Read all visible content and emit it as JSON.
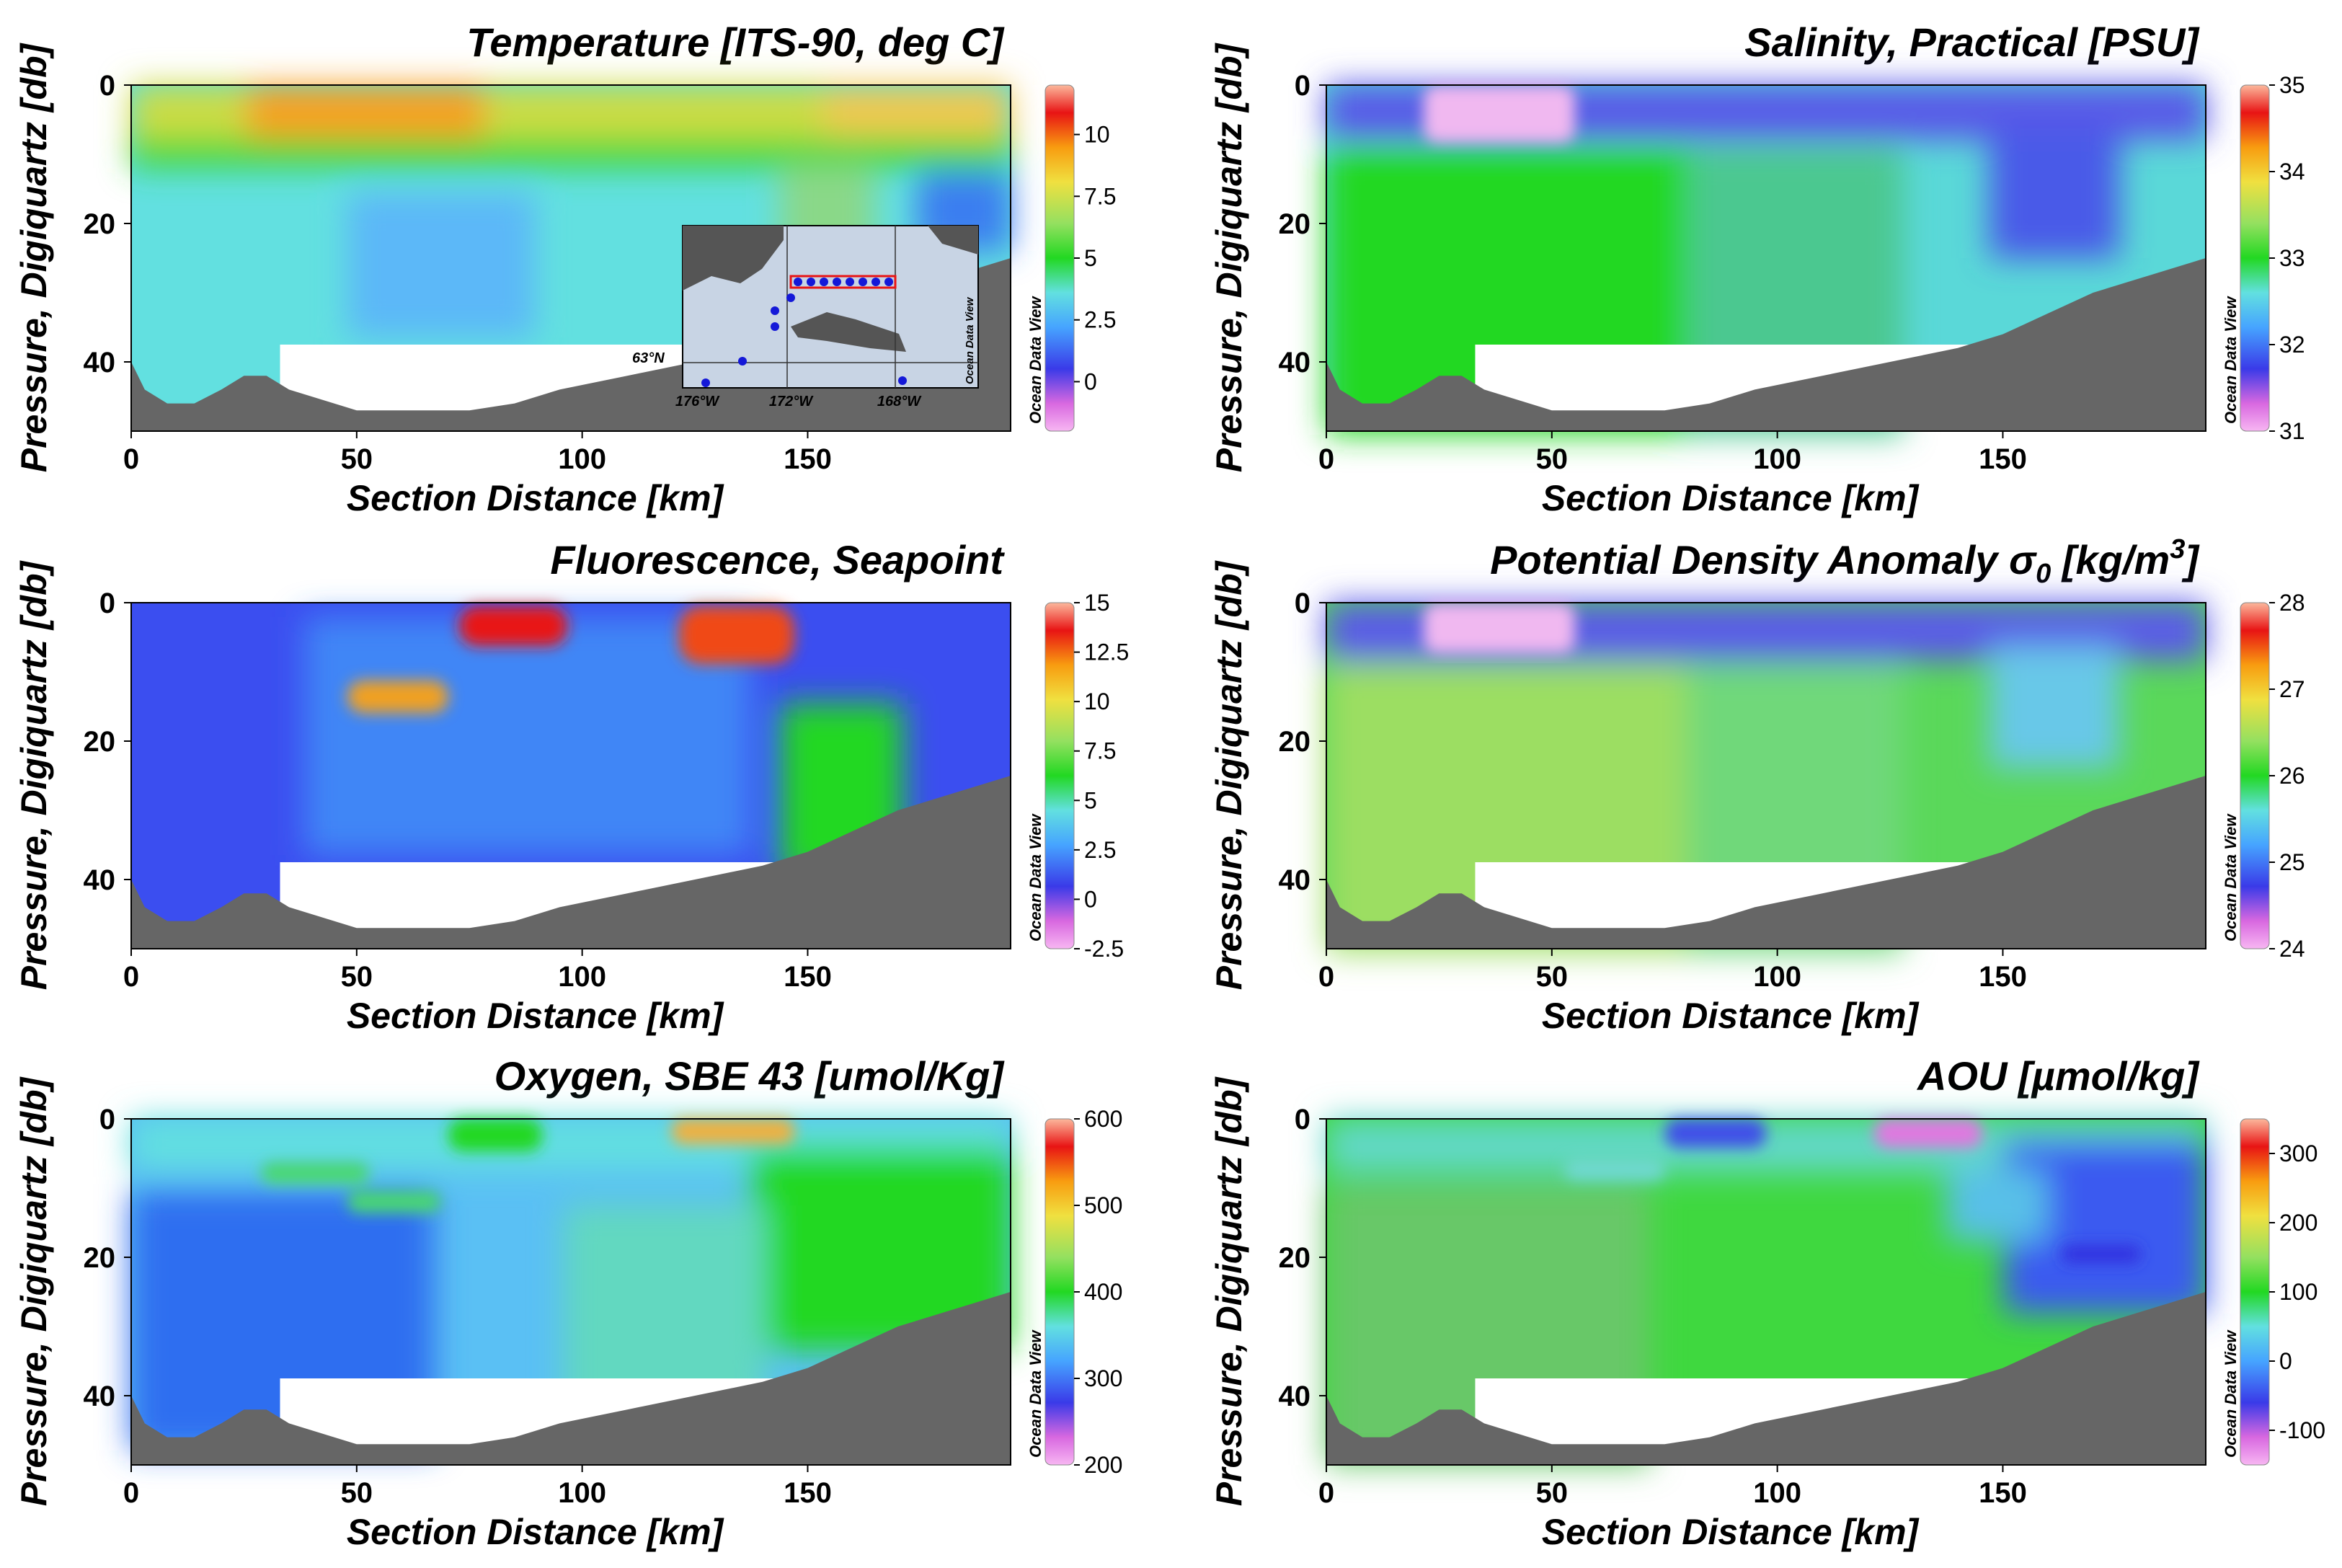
{
  "watermark": "Ocean Data View",
  "inset_map": {
    "lat_label": "63°N",
    "lon_labels": [
      "176°W",
      "172°W",
      "168°W"
    ]
  },
  "panels": [
    {
      "title": "Temperature [ITS-90, deg C]",
      "colorbar": {
        "range": [
          -2,
          12
        ],
        "ticks": [
          "0",
          "2.5",
          "5",
          "7.5",
          "10"
        ],
        "tick_values": [
          0,
          2.5,
          5,
          7.5,
          10
        ]
      },
      "has_inset": true
    },
    {
      "title": "Salinity, Practical [PSU]",
      "colorbar": {
        "range": [
          31,
          35
        ],
        "ticks": [
          "31",
          "32",
          "33",
          "34",
          "35"
        ],
        "tick_values": [
          31,
          32,
          33,
          34,
          35
        ]
      }
    },
    {
      "title": "Fluorescence, Seapoint",
      "colorbar": {
        "range": [
          -2.5,
          15
        ],
        "ticks": [
          "-2.5",
          "0",
          "2.5",
          "5",
          "7.5",
          "10",
          "12.5",
          "15"
        ],
        "tick_values": [
          -2.5,
          0,
          2.5,
          5,
          7.5,
          10,
          12.5,
          15
        ]
      }
    },
    {
      "title": "Potential Density Anomaly σ",
      "title_sub": "0",
      "title_tail": " [kg/m",
      "title_sup": "3",
      "title_end": "]",
      "colorbar": {
        "range": [
          24,
          28
        ],
        "ticks": [
          "24",
          "25",
          "26",
          "27",
          "28"
        ],
        "tick_values": [
          24,
          25,
          26,
          27,
          28
        ]
      }
    },
    {
      "title": "Oxygen, SBE 43 [umol/Kg]",
      "colorbar": {
        "range": [
          200,
          600
        ],
        "ticks": [
          "200",
          "300",
          "400",
          "500",
          "600"
        ],
        "tick_values": [
          200,
          300,
          400,
          500,
          600
        ]
      }
    },
    {
      "title": "AOU [µmol/kg]",
      "colorbar": {
        "range": [
          -150,
          350
        ],
        "ticks": [
          "-100",
          "0",
          "100",
          "200",
          "300"
        ],
        "tick_values": [
          -100,
          0,
          100,
          200,
          300
        ]
      }
    }
  ],
  "chart_data": [
    {
      "type": "heatmap",
      "title": "Temperature [ITS-90, deg C]",
      "xlabel": "Section Distance [km]",
      "ylabel": "Pressure, Digiquartz [db]",
      "xlim": [
        0,
        195
      ],
      "ylim": [
        50,
        0
      ],
      "xticks": [
        0,
        50,
        100,
        150
      ],
      "yticks": [
        0,
        20,
        40
      ],
      "bathymetry": {
        "x": [
          0,
          3,
          8,
          14,
          20,
          25,
          30,
          35,
          40,
          50,
          60,
          75,
          85,
          95,
          110,
          125,
          140,
          150,
          160,
          170,
          180,
          195
        ],
        "depth": [
          40,
          44,
          46,
          46,
          44,
          42,
          42,
          44,
          45,
          47,
          47,
          47,
          46,
          44,
          42,
          40,
          38,
          36,
          33,
          30,
          28,
          25
        ]
      },
      "features": [
        {
          "x": [
            25,
            75
          ],
          "depth": [
            0,
            8
          ],
          "value": 8
        },
        {
          "x": [
            145,
            195
          ],
          "depth": [
            0,
            8
          ],
          "value": 7
        },
        {
          "x": [
            0,
            195
          ],
          "depth": [
            8,
            45
          ],
          "value": 2.5
        }
      ]
    },
    {
      "type": "heatmap",
      "title": "Salinity, Practical [PSU]",
      "xlabel": "Section Distance [km]",
      "ylabel": "Pressure, Digiquartz [db]",
      "xlim": [
        0,
        195
      ],
      "ylim": [
        50,
        0
      ],
      "xticks": [
        0,
        50,
        100,
        150
      ],
      "yticks": [
        0,
        20,
        40
      ],
      "features": [
        {
          "x": [
            20,
            55
          ],
          "depth": [
            0,
            8
          ],
          "value": 31.0
        },
        {
          "x": [
            0,
            60
          ],
          "depth": [
            10,
            45
          ],
          "value": 32.8
        },
        {
          "x": [
            140,
            170
          ],
          "depth": [
            0,
            22
          ],
          "value": 31.7
        }
      ]
    },
    {
      "type": "heatmap",
      "title": "Fluorescence, Seapoint",
      "xlabel": "Section Distance [km]",
      "ylabel": "Pressure, Digiquartz [db]",
      "xlim": [
        0,
        195
      ],
      "ylim": [
        50,
        0
      ],
      "xticks": [
        0,
        50,
        100,
        150
      ],
      "yticks": [
        0,
        20,
        40
      ],
      "features": [
        {
          "x": [
            73,
            95
          ],
          "depth": [
            1,
            5
          ],
          "value": 13
        },
        {
          "x": [
            120,
            145
          ],
          "depth": [
            1,
            8
          ],
          "value": 12
        },
        {
          "x": [
            50,
            75
          ],
          "depth": [
            10,
            15
          ],
          "value": 10
        },
        {
          "x": [
            140,
            165
          ],
          "depth": [
            10,
            35
          ],
          "value": 5
        }
      ]
    },
    {
      "type": "heatmap",
      "title": "Potential Density Anomaly σ0 [kg/m3]",
      "xlabel": "Section Distance [km]",
      "ylabel": "Pressure, Digiquartz [db]",
      "xlim": [
        0,
        195
      ],
      "ylim": [
        50,
        0
      ],
      "xticks": [
        0,
        50,
        100,
        150
      ],
      "yticks": [
        0,
        20,
        40
      ],
      "features": [
        {
          "x": [
            20,
            55
          ],
          "depth": [
            0,
            8
          ],
          "value": 24.0
        },
        {
          "x": [
            0,
            60
          ],
          "depth": [
            10,
            45
          ],
          "value": 26.3
        },
        {
          "x": [
            140,
            170
          ],
          "depth": [
            0,
            20
          ],
          "value": 25.2
        }
      ]
    },
    {
      "type": "heatmap",
      "title": "Oxygen, SBE 43 [umol/Kg]",
      "xlabel": "Section Distance [km]",
      "ylabel": "Pressure, Digiquartz [db]",
      "xlim": [
        0,
        195
      ],
      "ylim": [
        50,
        0
      ],
      "xticks": [
        0,
        50,
        100,
        150
      ],
      "yticks": [
        0,
        20,
        40
      ],
      "features": [
        {
          "x": [
            125,
            160
          ],
          "depth": [
            0,
            4
          ],
          "value": 480
        },
        {
          "x": [
            0,
            60
          ],
          "depth": [
            10,
            40
          ],
          "value": 280
        },
        {
          "x": [
            140,
            195
          ],
          "depth": [
            5,
            35
          ],
          "value": 390
        }
      ]
    },
    {
      "type": "heatmap",
      "title": "AOU [µmol/kg]",
      "xlabel": "Section Distance [km]",
      "ylabel": "Pressure, Digiquartz [db]",
      "xlim": [
        0,
        195
      ],
      "ylim": [
        50,
        0
      ],
      "xticks": [
        0,
        50,
        100,
        150
      ],
      "yticks": [
        0,
        20,
        40
      ],
      "features": [
        {
          "x": [
            120,
            150
          ],
          "depth": [
            0,
            4
          ],
          "value": -140
        },
        {
          "x": [
            150,
            195
          ],
          "depth": [
            5,
            20
          ],
          "value": -80
        },
        {
          "x": [
            0,
            195
          ],
          "depth": [
            10,
            45
          ],
          "value": 10
        }
      ]
    }
  ],
  "axes": {
    "xlabel": "Section Distance [km]",
    "ylabel": "Pressure, Digiquartz [db]",
    "xticks": [
      "0",
      "50",
      "100",
      "150"
    ],
    "xtick_values": [
      0,
      50,
      100,
      150
    ],
    "yticks": [
      "0",
      "20",
      "40"
    ],
    "ytick_values": [
      0,
      20,
      40
    ]
  }
}
